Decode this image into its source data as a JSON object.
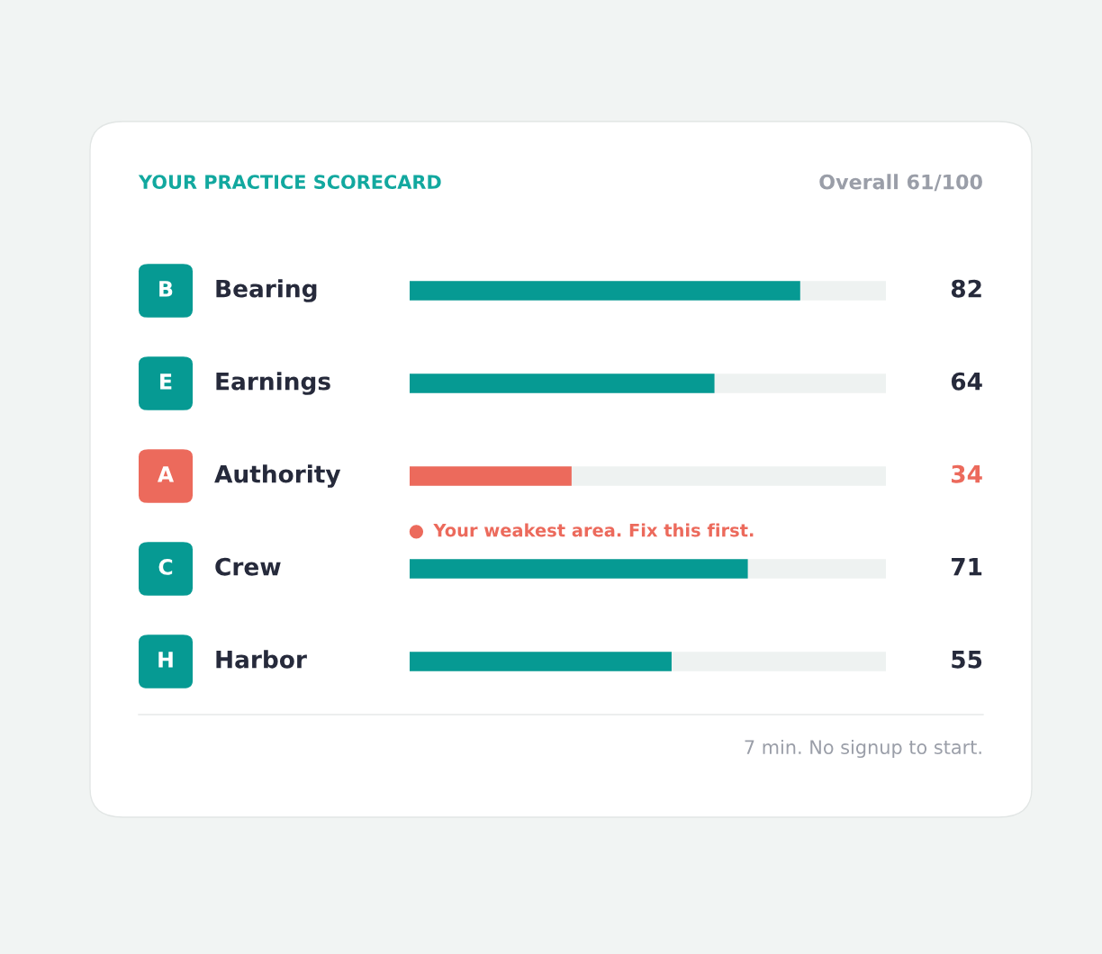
{
  "chart_data": {
    "type": "bar",
    "orientation": "horizontal",
    "title": "YOUR PRACTICE SCORECARD",
    "subtitle": "Overall 61/100",
    "categories": [
      "Bearing",
      "Earnings",
      "Authority",
      "Crew",
      "Harbor"
    ],
    "values": [
      82,
      64,
      34,
      71,
      55
    ],
    "colors": [
      "#069a93",
      "#069a93",
      "#ec6a5c",
      "#069a93",
      "#069a93"
    ],
    "xlim": [
      0,
      100
    ],
    "data_labels": true,
    "annotations": [
      "B",
      "E",
      "A",
      "C",
      "H",
      "Your weakest area. Fix this first.",
      "7 min. No signup to start."
    ]
  }
}
